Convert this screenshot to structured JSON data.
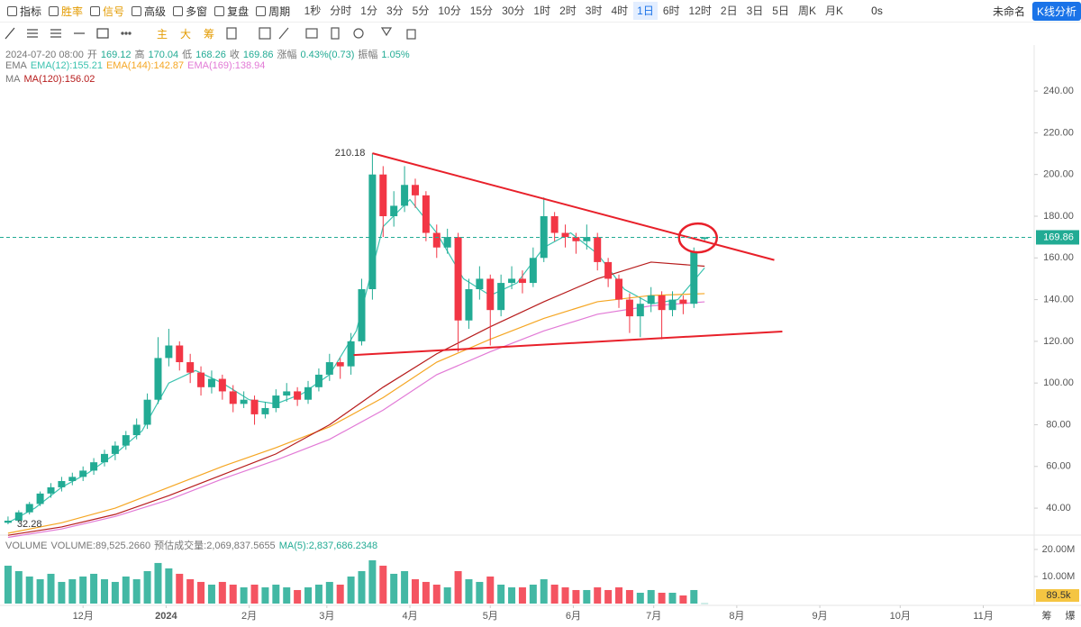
{
  "toolbar": {
    "left": [
      "指标",
      "胜率",
      "信号",
      "高级",
      "多窗",
      "复盘",
      "周期"
    ],
    "periods": [
      "1秒",
      "分时",
      "1分",
      "3分",
      "5分",
      "10分",
      "15分",
      "30分",
      "1时",
      "2时",
      "3时",
      "4时",
      "1日",
      "6时",
      "12时",
      "2日",
      "3日",
      "5日",
      "周K",
      "月K"
    ],
    "active_period_index": 12,
    "timer": "0s",
    "workspace": "未命名",
    "analysis_button": "K线分析"
  },
  "drawing_tools": [
    "主",
    "大",
    "筹"
  ],
  "info": {
    "datetime": "2024-07-20 08:00",
    "fields": [
      {
        "label": "开",
        "value": "169.12"
      },
      {
        "label": "高",
        "value": "170.04"
      },
      {
        "label": "低",
        "value": "168.26"
      },
      {
        "label": "收",
        "value": "169.86"
      },
      {
        "label": "涨幅",
        "value": "0.43%(0.73)"
      },
      {
        "label": "振幅",
        "value": "1.05%"
      }
    ]
  },
  "indicators": {
    "ema_title": "EMA",
    "ema": [
      "EMA(12):155.21",
      "EMA(144):142.87",
      "EMA(169):138.94"
    ],
    "ma_title": "MA",
    "ma": [
      "MA(120):156.02"
    ]
  },
  "volume_header": {
    "title": "VOLUME",
    "items": [
      "VOLUME:89,525.2660",
      "预估成交量:2,069,837.5655",
      "MA(5):2,837,686.2348"
    ]
  },
  "footer_buttons": [
    "筹",
    "爆"
  ],
  "chart_data": {
    "type": "candlestick",
    "up_color": "#22ab94",
    "down_color": "#f23645",
    "x": [
      2,
      6,
      10,
      14,
      18,
      22,
      26,
      30,
      34,
      38,
      42,
      46,
      50,
      54,
      58,
      62,
      66,
      70,
      74,
      78,
      82,
      86,
      90,
      94,
      98,
      102,
      106,
      110,
      114,
      118,
      122,
      126,
      130,
      134,
      138,
      142,
      146,
      150,
      154,
      158,
      162,
      166,
      170,
      174,
      178,
      182,
      186,
      190,
      194,
      198,
      202,
      206,
      210,
      214,
      218,
      222,
      226,
      230,
      234,
      238,
      242,
      246,
      250,
      254,
      258,
      262
    ],
    "ohlc": [
      [
        33,
        36,
        32.28,
        34
      ],
      [
        34,
        39,
        33,
        38
      ],
      [
        38,
        43,
        37,
        42
      ],
      [
        42,
        48,
        41,
        47
      ],
      [
        47,
        52,
        45,
        50
      ],
      [
        50,
        55,
        48,
        53
      ],
      [
        53,
        57,
        51,
        55
      ],
      [
        55,
        60,
        53,
        58
      ],
      [
        58,
        64,
        56,
        62
      ],
      [
        62,
        68,
        60,
        66
      ],
      [
        66,
        72,
        63,
        70
      ],
      [
        70,
        77,
        68,
        75
      ],
      [
        75,
        83,
        73,
        80
      ],
      [
        80,
        95,
        78,
        92
      ],
      [
        92,
        122,
        90,
        112
      ],
      [
        112,
        126,
        108,
        118
      ],
      [
        118,
        120,
        106,
        110
      ],
      [
        110,
        114,
        100,
        105
      ],
      [
        105,
        108,
        94,
        98
      ],
      [
        98,
        106,
        95,
        102
      ],
      [
        102,
        104,
        92,
        96
      ],
      [
        96,
        99,
        86,
        90
      ],
      [
        90,
        96,
        88,
        92
      ],
      [
        92,
        94,
        80,
        85
      ],
      [
        85,
        91,
        83,
        88
      ],
      [
        88,
        97,
        86,
        94
      ],
      [
        94,
        100,
        91,
        96
      ],
      [
        96,
        98,
        89,
        92
      ],
      [
        92,
        101,
        90,
        98
      ],
      [
        98,
        107,
        96,
        104
      ],
      [
        104,
        114,
        101,
        110
      ],
      [
        110,
        112,
        102,
        108
      ],
      [
        108,
        124,
        104,
        120
      ],
      [
        120,
        150,
        118,
        145
      ],
      [
        145,
        210.18,
        140,
        200
      ],
      [
        200,
        204,
        170,
        180
      ],
      [
        180,
        192,
        175,
        185
      ],
      [
        185,
        204,
        182,
        195
      ],
      [
        195,
        198,
        184,
        190
      ],
      [
        190,
        192,
        168,
        172
      ],
      [
        172,
        176,
        160,
        165
      ],
      [
        165,
        174,
        162,
        170
      ],
      [
        170,
        172,
        115,
        130
      ],
      [
        130,
        150,
        126,
        145
      ],
      [
        145,
        156,
        140,
        150
      ],
      [
        150,
        152,
        118,
        135
      ],
      [
        135,
        152,
        132,
        148
      ],
      [
        148,
        156,
        145,
        150
      ],
      [
        150,
        154,
        143,
        148
      ],
      [
        148,
        165,
        146,
        160
      ],
      [
        160,
        189,
        158,
        180
      ],
      [
        180,
        182,
        168,
        172
      ],
      [
        172,
        176,
        165,
        170
      ],
      [
        170,
        172,
        162,
        168
      ],
      [
        168,
        176,
        164,
        170
      ],
      [
        170,
        172,
        154,
        158
      ],
      [
        158,
        160,
        146,
        150
      ],
      [
        150,
        152,
        136,
        140
      ],
      [
        140,
        143,
        124,
        132
      ],
      [
        132,
        141,
        122,
        138
      ],
      [
        138,
        146,
        134,
        142
      ],
      [
        142,
        144,
        121,
        135
      ],
      [
        135,
        144,
        132,
        140
      ],
      [
        140,
        142,
        133,
        138
      ],
      [
        138,
        165,
        136,
        163
      ],
      [
        169.12,
        170.04,
        168.26,
        169.86
      ]
    ],
    "xlim": [
      -1,
      385
    ],
    "xticks": [
      {
        "value": 30,
        "label": "12月"
      },
      {
        "value": 61,
        "label": "2024"
      },
      {
        "value": 92,
        "label": "2月"
      },
      {
        "value": 121,
        "label": "3月"
      },
      {
        "value": 152,
        "label": "4月"
      },
      {
        "value": 182,
        "label": "5月"
      },
      {
        "value": 213,
        "label": "6月"
      },
      {
        "value": 243,
        "label": "7月"
      },
      {
        "value": 274,
        "label": "8月"
      },
      {
        "value": 305,
        "label": "9月"
      },
      {
        "value": 335,
        "label": "10月"
      },
      {
        "value": 366,
        "label": "11月"
      }
    ],
    "ylim": [
      28.8,
      254.3
    ],
    "yticks": [
      {
        "value": 40,
        "label": "40.00"
      },
      {
        "value": 60,
        "label": "60.00"
      },
      {
        "value": 80,
        "label": "80.00"
      },
      {
        "value": 100,
        "label": "100.00"
      },
      {
        "value": 120,
        "label": "120.00"
      },
      {
        "value": 140,
        "label": "140.00"
      },
      {
        "value": 160,
        "label": "160.00"
      },
      {
        "value": 180,
        "label": "180.00"
      },
      {
        "value": 200,
        "label": "200.00"
      },
      {
        "value": 220,
        "label": "220.00"
      },
      {
        "value": 240,
        "label": "240.00"
      }
    ],
    "grid": false,
    "lines": [
      {
        "color": "#3cc3b0",
        "x": [
          2,
          12,
          22,
          32,
          42,
          52,
          62,
          72,
          82,
          92,
          102,
          112,
          122,
          132,
          142,
          152,
          162,
          172,
          182,
          192,
          202,
          212,
          222,
          232,
          242,
          252,
          262
        ],
        "values": [
          33,
          40,
          50,
          57,
          66,
          77,
          100,
          106,
          100,
          92,
          90,
          95,
          104,
          125,
          175,
          188,
          172,
          150,
          142,
          148,
          165,
          172,
          162,
          145,
          138,
          140,
          155.21
        ]
      },
      {
        "color": "#f5a623",
        "x": [
          2,
          22,
          42,
          62,
          82,
          102,
          122,
          142,
          162,
          182,
          202,
          222,
          242,
          262
        ],
        "values": [
          28,
          33,
          40,
          50,
          60,
          69,
          79,
          93,
          110,
          121,
          131,
          139,
          142,
          142.87
        ]
      },
      {
        "color": "#e27ad6",
        "x": [
          2,
          22,
          42,
          62,
          82,
          102,
          122,
          142,
          162,
          182,
          202,
          222,
          242,
          262
        ],
        "values": [
          26,
          30,
          36,
          44,
          54,
          63,
          73,
          87,
          104,
          115,
          125,
          133,
          137,
          138.94
        ]
      },
      {
        "color": "#b71c1c",
        "x": [
          2,
          22,
          42,
          62,
          82,
          102,
          122,
          142,
          162,
          182,
          202,
          222,
          242,
          262
        ],
        "values": [
          27,
          31,
          37,
          46,
          56,
          66,
          80,
          98,
          114,
          127,
          139,
          150,
          158,
          156.02
        ]
      }
    ],
    "trendlines": [
      {
        "color": "#e8202a",
        "x": [
          138,
          288
        ],
        "y": [
          210.18,
          159
        ]
      },
      {
        "color": "#e8202a",
        "x": [
          131,
          291
        ],
        "y": [
          113.4,
          124.7
        ]
      }
    ],
    "highlight": {
      "color": "#e8202a",
      "x": 259.5,
      "y": 169.6
    },
    "last_price_color": "#22ab94",
    "volume": {
      "values": [
        14000000,
        12000000,
        10000000,
        9000000,
        11000000,
        8000000,
        9000000,
        10000000,
        11000000,
        9000000,
        8000000,
        10000000,
        9000000,
        12000000,
        15000000,
        13000000,
        11000000,
        9000000,
        8000000,
        7000000,
        8000000,
        7000000,
        6000000,
        7000000,
        6000000,
        7000000,
        6000000,
        5000000,
        6000000,
        7000000,
        8000000,
        7000000,
        10000000,
        12000000,
        16000000,
        14000000,
        11000000,
        12000000,
        9000000,
        8000000,
        7000000,
        6000000,
        12000000,
        9000000,
        8000000,
        10000000,
        7000000,
        6000000,
        6000000,
        7000000,
        9000000,
        7000000,
        6000000,
        5000000,
        5000000,
        6000000,
        5000000,
        6000000,
        5000000,
        4000000,
        5000000,
        4000000,
        4000000,
        3000000,
        5000000,
        89525.266
      ],
      "ylim": [
        0,
        23300000
      ],
      "yticks": [
        {
          "value": 10000000,
          "label": "10.00M"
        },
        {
          "value": 20000000,
          "label": "20.00M"
        }
      ],
      "last_label": "89.5k"
    }
  }
}
